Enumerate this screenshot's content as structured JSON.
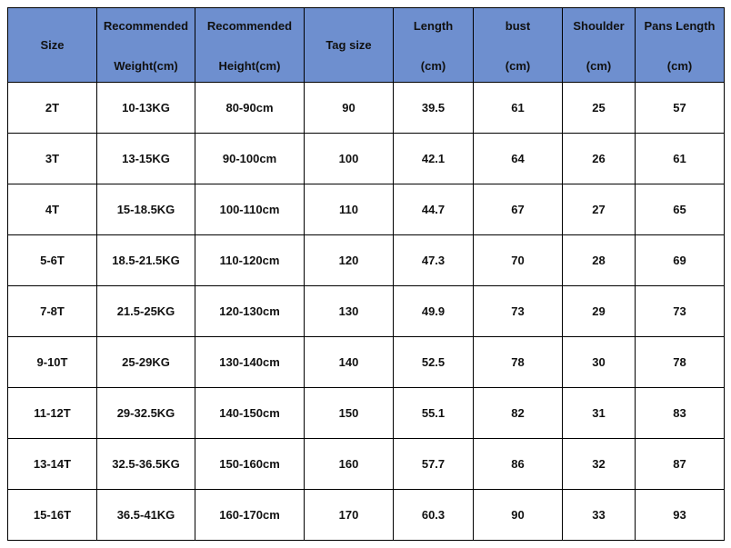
{
  "table": {
    "header": [
      [
        "Size"
      ],
      [
        "Recommended",
        "Weight(cm)"
      ],
      [
        "Recommended",
        "Height(cm)"
      ],
      [
        "Tag size"
      ],
      [
        "Length",
        "(cm)"
      ],
      [
        "bust",
        "(cm)"
      ],
      [
        "Shoulder",
        "(cm)"
      ],
      [
        "Pans Length",
        "(cm)"
      ]
    ],
    "rows": [
      [
        "2T",
        "10-13KG",
        "80-90cm",
        "90",
        "39.5",
        "61",
        "25",
        "57"
      ],
      [
        "3T",
        "13-15KG",
        "90-100cm",
        "100",
        "42.1",
        "64",
        "26",
        "61"
      ],
      [
        "4T",
        "15-18.5KG",
        "100-110cm",
        "110",
        "44.7",
        "67",
        "27",
        "65"
      ],
      [
        "5-6T",
        "18.5-21.5KG",
        "110-120cm",
        "120",
        "47.3",
        "70",
        "28",
        "69"
      ],
      [
        "7-8T",
        "21.5-25KG",
        "120-130cm",
        "130",
        "49.9",
        "73",
        "29",
        "73"
      ],
      [
        "9-10T",
        "25-29KG",
        "130-140cm",
        "140",
        "52.5",
        "78",
        "30",
        "78"
      ],
      [
        "11-12T",
        "29-32.5KG",
        "140-150cm",
        "150",
        "55.1",
        "82",
        "31",
        "83"
      ],
      [
        "13-14T",
        "32.5-36.5KG",
        "150-160cm",
        "160",
        "57.7",
        "86",
        "32",
        "87"
      ],
      [
        "15-16T",
        "36.5-41KG",
        "160-170cm",
        "170",
        "60.3",
        "90",
        "33",
        "93"
      ]
    ]
  }
}
